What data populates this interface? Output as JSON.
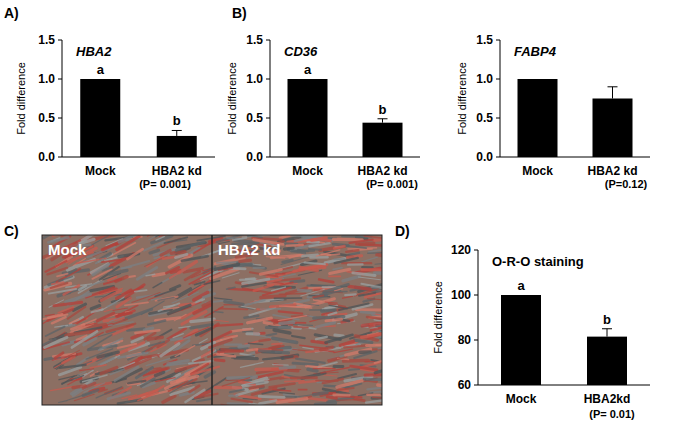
{
  "chart_data": [
    {
      "type": "bar",
      "panel": "A)",
      "title": "HBA2",
      "y_label": "Fold difference",
      "categories": [
        "Mock",
        "HBA2 kd"
      ],
      "values": [
        1,
        0.27
      ],
      "errors": [
        0,
        0.07
      ],
      "group_letters": [
        "a",
        "b"
      ],
      "color": "#000000",
      "ylim": [
        0,
        1.5
      ],
      "yticks": [
        {
          "value": 0,
          "label": "0.0"
        },
        0.5,
        {
          "value": 1,
          "label": "1.0"
        },
        1.5
      ],
      "annotations": [
        "(P= 0.001)"
      ]
    },
    {
      "type": "bar",
      "panel": "B)",
      "title": "CD36",
      "y_label": "Fold difference",
      "categories": [
        "Mock",
        "HBA2 kd"
      ],
      "values": [
        1,
        0.44
      ],
      "errors": [
        0,
        0.05
      ],
      "group_letters": [
        "a",
        "b"
      ],
      "color": "#000000",
      "ylim": [
        0,
        1.5
      ],
      "yticks": [
        {
          "value": 0,
          "label": "0.0"
        },
        0.5,
        {
          "value": 1,
          "label": "1.0"
        },
        1.5
      ],
      "annotations": [
        "(P= 0.001)"
      ]
    },
    {
      "type": "bar",
      "title": "FABP4",
      "y_label": "Fold difference",
      "categories": [
        "Mock",
        "HBA2 kd"
      ],
      "values": [
        1,
        0.75
      ],
      "errors": [
        0,
        0.15
      ],
      "color": "#000000",
      "ylim": [
        0,
        1.5
      ],
      "yticks": [
        {
          "value": 0,
          "label": "0.0"
        },
        0.5,
        {
          "value": 1,
          "label": "1.0"
        },
        1.5
      ],
      "annotations": [
        "(P=0.12)"
      ]
    },
    {
      "type": "bar",
      "panel": "D)",
      "title": "O-R-O staining",
      "y_label": "Fold difference",
      "categories": [
        "Mock",
        "HBA2kd"
      ],
      "values": [
        100,
        81.5
      ],
      "errors": [
        0,
        3.5
      ],
      "group_letters": [
        "a",
        "b"
      ],
      "color": "#000000",
      "ylim": [
        60,
        120
      ],
      "yticks": [
        60,
        80,
        100,
        120
      ],
      "annotations": [
        "(P= 0.01)"
      ]
    }
  ],
  "image_panel": {
    "panel": "C)",
    "labels": [
      "Mock",
      "HBA2 kd"
    ]
  }
}
